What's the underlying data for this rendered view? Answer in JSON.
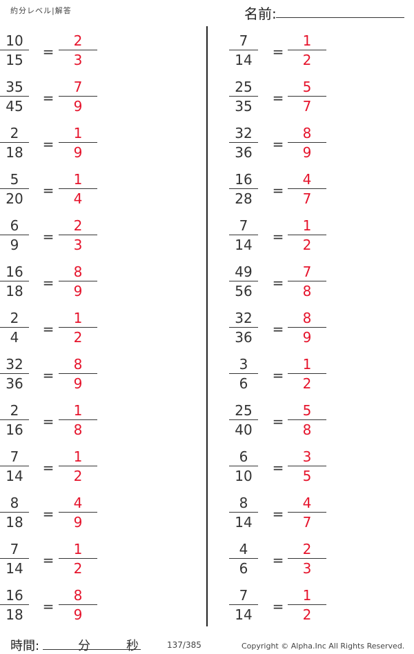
{
  "header": {
    "title": "約分レベル|解答",
    "name_label": "名前:"
  },
  "left_column": [
    {
      "q": [
        "10",
        "15"
      ],
      "a": [
        "2",
        "3"
      ]
    },
    {
      "q": [
        "35",
        "45"
      ],
      "a": [
        "7",
        "9"
      ]
    },
    {
      "q": [
        "2",
        "18"
      ],
      "a": [
        "1",
        "9"
      ]
    },
    {
      "q": [
        "5",
        "20"
      ],
      "a": [
        "1",
        "4"
      ]
    },
    {
      "q": [
        "6",
        "9"
      ],
      "a": [
        "2",
        "3"
      ]
    },
    {
      "q": [
        "16",
        "18"
      ],
      "a": [
        "8",
        "9"
      ]
    },
    {
      "q": [
        "2",
        "4"
      ],
      "a": [
        "1",
        "2"
      ]
    },
    {
      "q": [
        "32",
        "36"
      ],
      "a": [
        "8",
        "9"
      ]
    },
    {
      "q": [
        "2",
        "16"
      ],
      "a": [
        "1",
        "8"
      ]
    },
    {
      "q": [
        "7",
        "14"
      ],
      "a": [
        "1",
        "2"
      ]
    },
    {
      "q": [
        "8",
        "18"
      ],
      "a": [
        "4",
        "9"
      ]
    },
    {
      "q": [
        "7",
        "14"
      ],
      "a": [
        "1",
        "2"
      ]
    },
    {
      "q": [
        "16",
        "18"
      ],
      "a": [
        "8",
        "9"
      ]
    }
  ],
  "right_column": [
    {
      "q": [
        "7",
        "14"
      ],
      "a": [
        "1",
        "2"
      ]
    },
    {
      "q": [
        "25",
        "35"
      ],
      "a": [
        "5",
        "7"
      ]
    },
    {
      "q": [
        "32",
        "36"
      ],
      "a": [
        "8",
        "9"
      ]
    },
    {
      "q": [
        "16",
        "28"
      ],
      "a": [
        "4",
        "7"
      ]
    },
    {
      "q": [
        "7",
        "14"
      ],
      "a": [
        "1",
        "2"
      ]
    },
    {
      "q": [
        "49",
        "56"
      ],
      "a": [
        "7",
        "8"
      ]
    },
    {
      "q": [
        "32",
        "36"
      ],
      "a": [
        "8",
        "9"
      ]
    },
    {
      "q": [
        "3",
        "6"
      ],
      "a": [
        "1",
        "2"
      ]
    },
    {
      "q": [
        "25",
        "40"
      ],
      "a": [
        "5",
        "8"
      ]
    },
    {
      "q": [
        "6",
        "10"
      ],
      "a": [
        "3",
        "5"
      ]
    },
    {
      "q": [
        "8",
        "14"
      ],
      "a": [
        "4",
        "7"
      ]
    },
    {
      "q": [
        "4",
        "6"
      ],
      "a": [
        "2",
        "3"
      ]
    },
    {
      "q": [
        "7",
        "14"
      ],
      "a": [
        "1",
        "2"
      ]
    }
  ],
  "equals": "=",
  "answer_color": "#e5132b",
  "footer": {
    "time_label": "時間:",
    "minutes_label": "分",
    "seconds_label": "秒",
    "page": "137/385",
    "copyright": "Copyright ©  Alpha.Inc All Rights Reserved."
  }
}
